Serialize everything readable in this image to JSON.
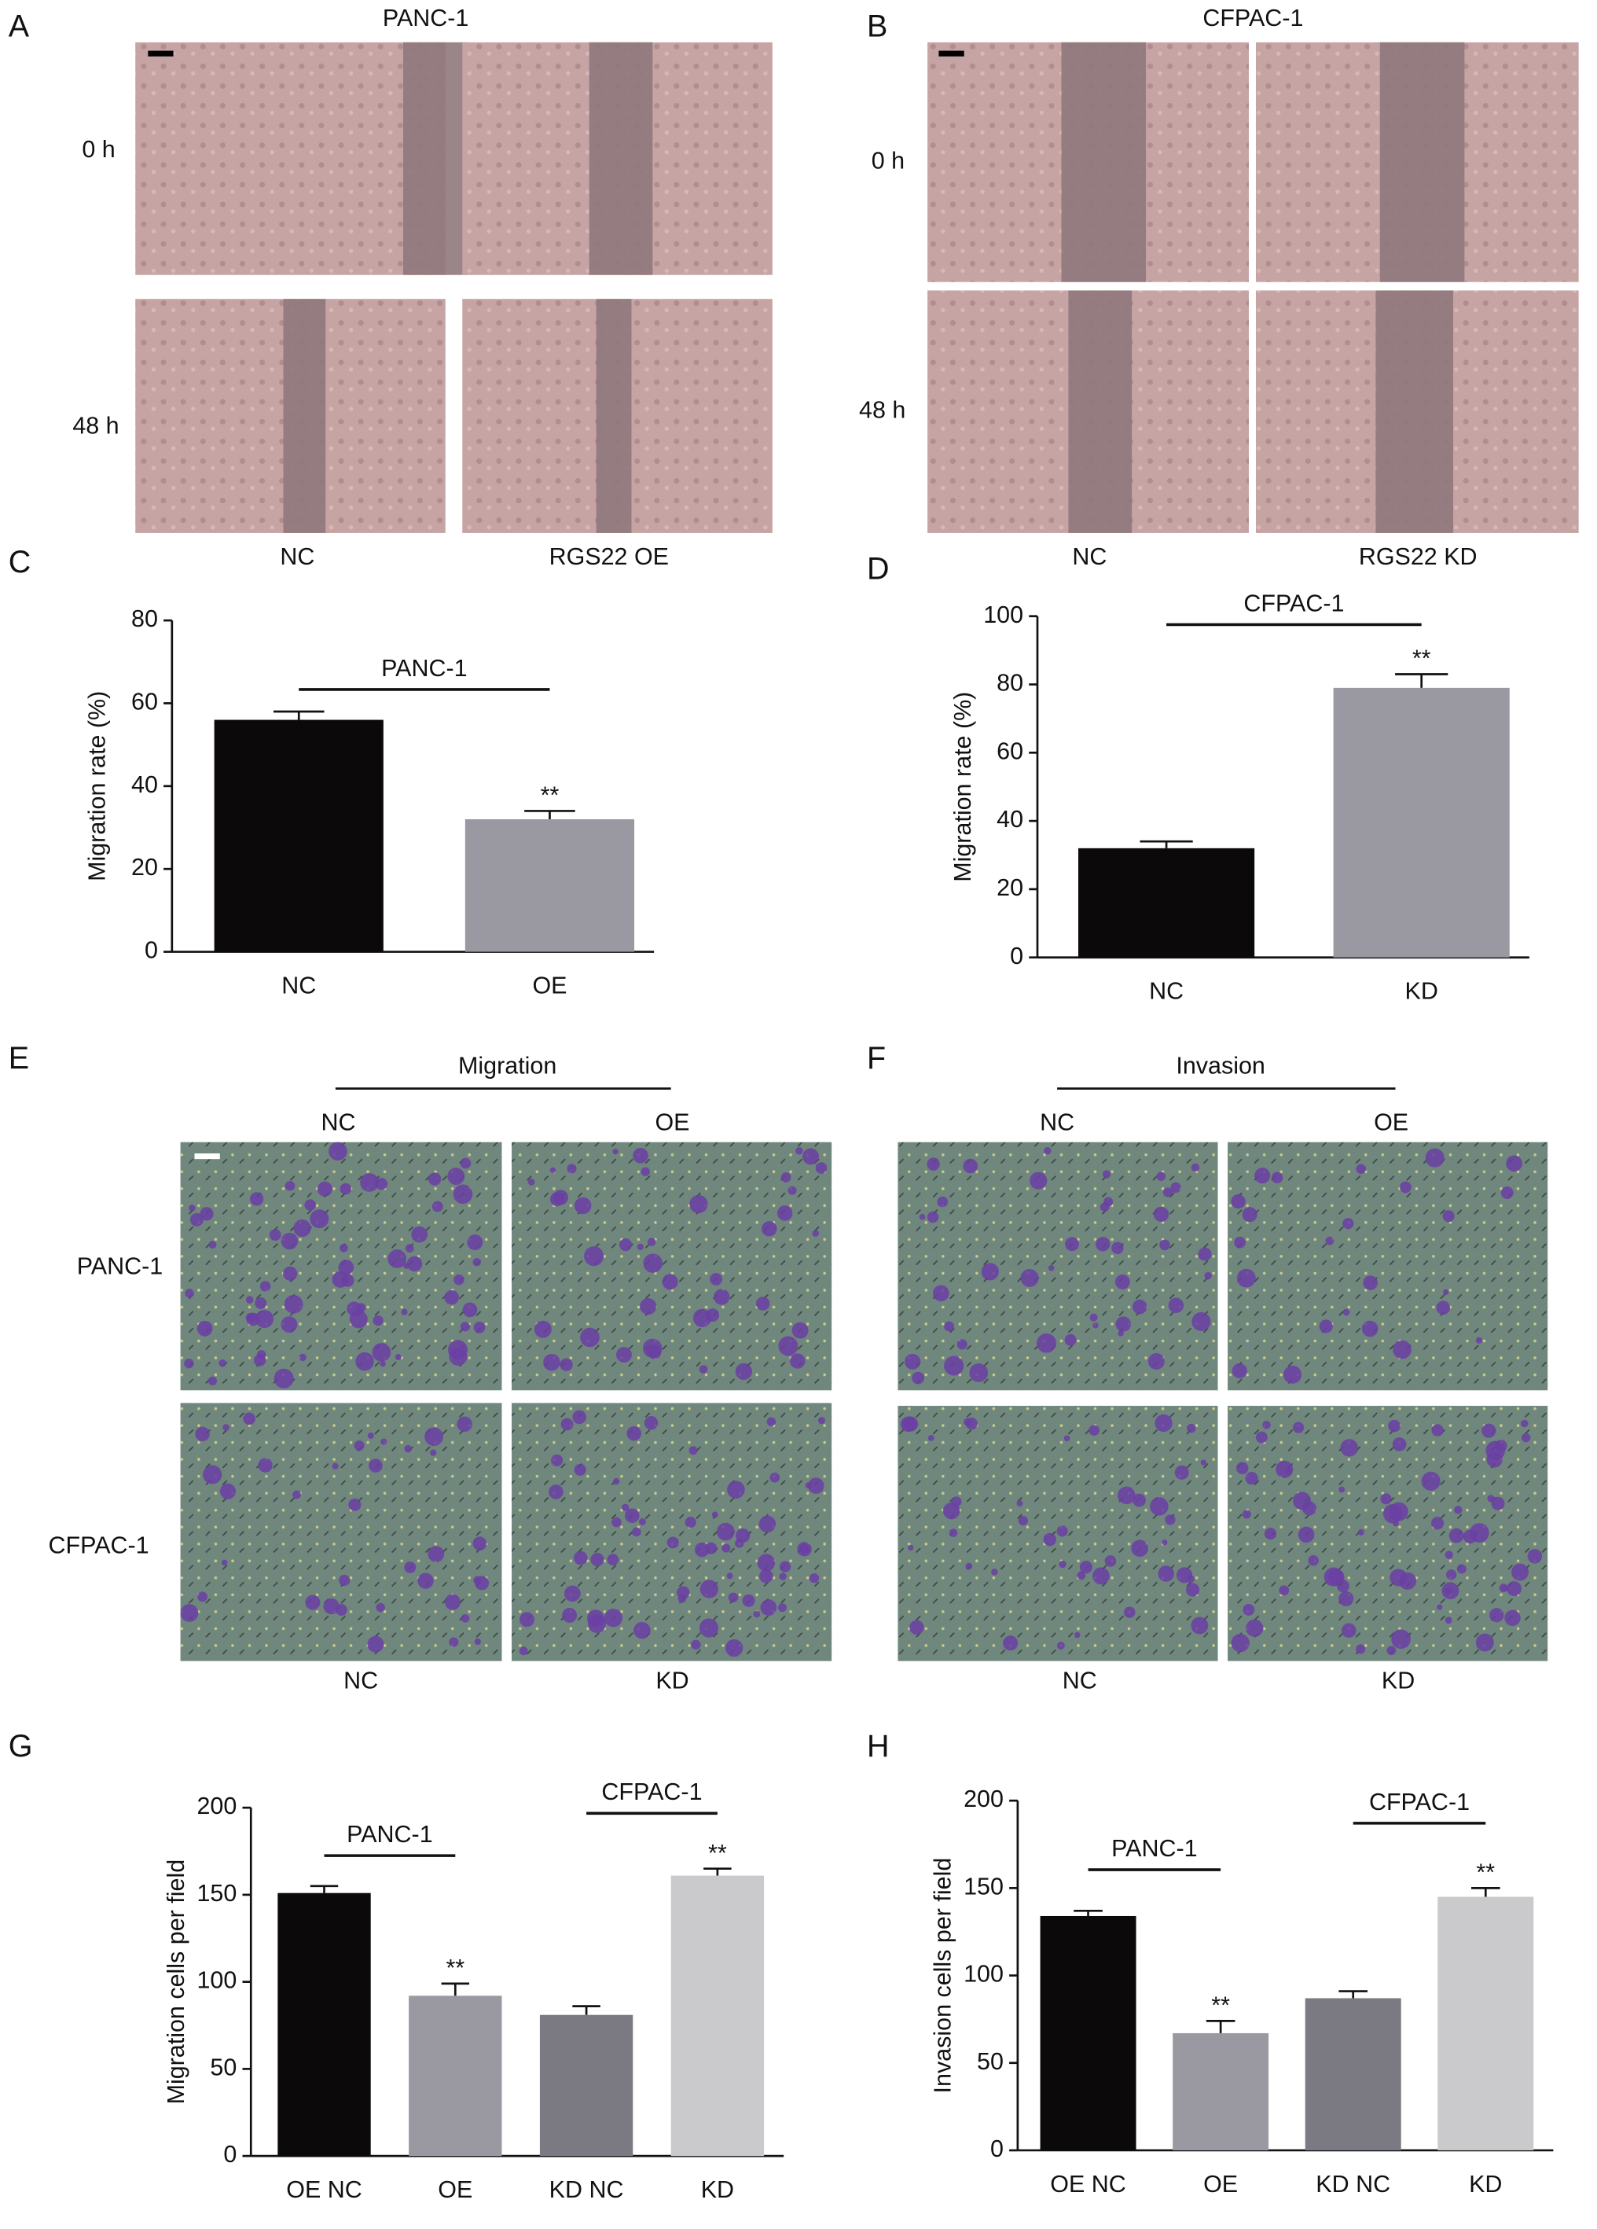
{
  "panels": {
    "A": {
      "label": "A",
      "title": "PANC-1",
      "rows": [
        "0 h",
        "48 h"
      ],
      "columns": [
        "NC",
        "RGS22 OE"
      ]
    },
    "B": {
      "label": "B",
      "title": "CFPAC-1",
      "rows": [
        "0 h",
        "48 h"
      ],
      "columns": [
        "NC",
        "RGS22 KD"
      ]
    },
    "E": {
      "label": "E",
      "title": "Migration",
      "columns_top": [
        "NC",
        "OE"
      ],
      "rows": [
        "PANC-1",
        "CFPAC-1"
      ],
      "columns_bottom": [
        "NC",
        "KD"
      ]
    },
    "F": {
      "label": "F",
      "title": "Invasion",
      "columns_top": [
        "NC",
        "OE"
      ],
      "columns_bottom": [
        "NC",
        "KD"
      ]
    }
  },
  "chart_data": [
    {
      "type": "bar",
      "panel_label": "C",
      "ylabel": "Migration rate (%)",
      "categories": [
        "NC",
        "OE"
      ],
      "values": [
        56,
        32
      ],
      "errors": [
        2,
        2
      ],
      "colors": [
        "#0c090b",
        "#9a99a1"
      ],
      "significance": [
        null,
        "**"
      ],
      "brackets": [
        "PANC-1"
      ],
      "ylim": [
        0,
        80
      ],
      "yticks": [
        0,
        20,
        40,
        60,
        80
      ]
    },
    {
      "type": "bar",
      "panel_label": "D",
      "ylabel": "Migration rate (%)",
      "categories": [
        "NC",
        "KD"
      ],
      "values": [
        32,
        79
      ],
      "errors": [
        2,
        4
      ],
      "colors": [
        "#0c090b",
        "#9a99a1"
      ],
      "significance": [
        null,
        "**"
      ],
      "brackets": [
        "CFPAC-1"
      ],
      "ylim": [
        0,
        100
      ],
      "yticks": [
        0,
        20,
        40,
        60,
        80,
        100
      ]
    },
    {
      "type": "bar",
      "panel_label": "G",
      "ylabel": "Migration cells per field",
      "categories": [
        "OE NC",
        "OE",
        "KD NC",
        "KD"
      ],
      "values": [
        151,
        92,
        81,
        161
      ],
      "errors": [
        4,
        7,
        5,
        4
      ],
      "colors": [
        "#0c090b",
        "#9a99a1",
        "#7b7981",
        "#cacacc"
      ],
      "significance": [
        null,
        "**",
        null,
        "**"
      ],
      "brackets": [
        "PANC-1",
        "CFPAC-1"
      ],
      "ylim": [
        0,
        200
      ],
      "yticks": [
        0,
        50,
        100,
        150,
        200
      ]
    },
    {
      "type": "bar",
      "panel_label": "H",
      "ylabel": "Invasion cells per field",
      "categories": [
        "OE NC",
        "OE",
        "KD NC",
        "KD"
      ],
      "values": [
        134,
        67,
        87,
        145
      ],
      "errors": [
        3,
        7,
        4,
        5
      ],
      "colors": [
        "#0c090b",
        "#9a99a1",
        "#7b7981",
        "#cacacc"
      ],
      "significance": [
        null,
        "**",
        null,
        "**"
      ],
      "brackets": [
        "PANC-1",
        "CFPAC-1"
      ],
      "ylim": [
        0,
        200
      ],
      "yticks": [
        0,
        50,
        100,
        150,
        200
      ]
    }
  ]
}
